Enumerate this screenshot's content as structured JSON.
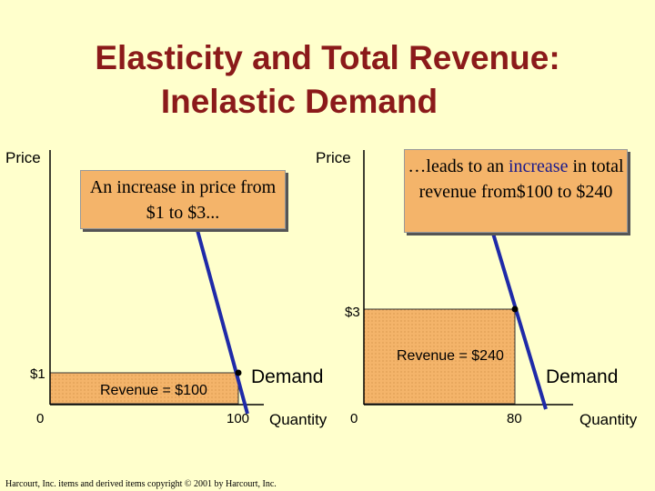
{
  "title": {
    "line1": "Elasticity and Total Revenue:",
    "line2": "Inelastic Demand"
  },
  "left_panel": {
    "y_axis_label": "Price",
    "x_axis_label": "Quantity",
    "origin_label": "0",
    "price_tick": "$1",
    "quantity_tick": "100",
    "revenue_label": "Revenue = $100",
    "curve_label": "Demand",
    "callout": "An increase in price from $1 to $3..."
  },
  "right_panel": {
    "y_axis_label": "Price",
    "x_axis_label": "Quantity",
    "origin_label": "0",
    "price_tick": "$3",
    "quantity_tick": "80",
    "revenue_label": "Revenue = $240",
    "curve_label": "Demand",
    "callout_prefix": "…leads to an ",
    "callout_highlight": "increase",
    "callout_rest": " in total revenue from$100 to $240"
  },
  "footer": "Harcourt, Inc. items and derived items copyright © 2001 by Harcourt, Inc.",
  "colors": {
    "background": "#ffffcc",
    "title": "#8b1a1a",
    "revenue_fill": "#f4b46a",
    "demand_line": "#1f2aa8"
  }
}
